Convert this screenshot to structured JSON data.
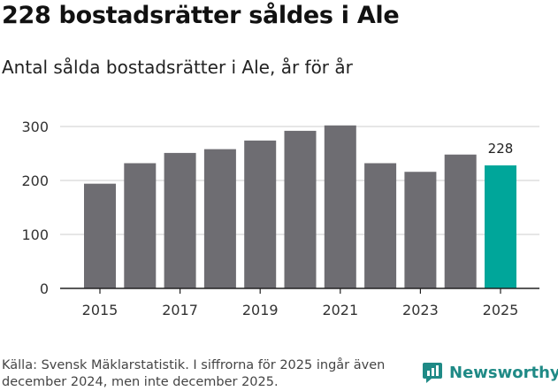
{
  "title": "228 bostadsrätter såldes i Ale",
  "subtitle": "Antal sålda bostadsrätter i Ale, år för år",
  "source": "Källa: Svensk Mäklarstatistik. I siffrorna för 2025 ingår även december 2024, men inte december 2025.",
  "brand": "Newsworthy",
  "colors": {
    "bar": "#6e6d72",
    "highlight": "#00a69a",
    "grid": "#dddddd",
    "brand": "#1f8a86"
  },
  "chart_data": {
    "type": "bar",
    "categories": [
      "2015",
      "2016",
      "2017",
      "2018",
      "2019",
      "2020",
      "2021",
      "2022",
      "2023",
      "2024",
      "2025"
    ],
    "values": [
      194,
      232,
      251,
      258,
      274,
      292,
      302,
      232,
      216,
      248,
      228
    ],
    "x_tick_labels": [
      "2015",
      "2017",
      "2019",
      "2021",
      "2023",
      "2025"
    ],
    "y_ticks": [
      0,
      100,
      200,
      300
    ],
    "ylim": [
      0,
      340
    ],
    "highlight_category": "2025",
    "data_labels": [
      {
        "category": "2025",
        "text": "228"
      }
    ],
    "grid": true,
    "xlabel": "",
    "ylabel": ""
  }
}
